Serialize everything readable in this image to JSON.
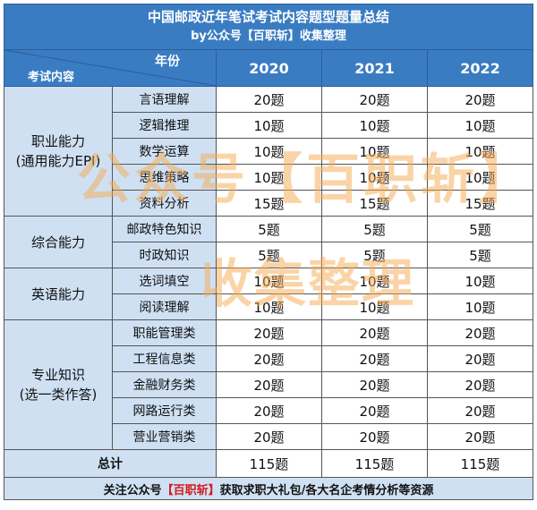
{
  "title": "中国邮政近年笔试考试内容题型题量总结",
  "subtitle": "by公众号【百职斩】收集整理",
  "header": {
    "year_label": "年份",
    "content_label": "考试内容",
    "years": [
      "2020",
      "2021",
      "2022"
    ]
  },
  "categories": [
    {
      "name_line1": "职业能力",
      "name_line2": "(通用能力EPI)",
      "rows": [
        {
          "sub": "言语理解",
          "values": [
            "20题",
            "20题",
            "20题"
          ]
        },
        {
          "sub": "逻辑推理",
          "values": [
            "10题",
            "10题",
            "10题"
          ]
        },
        {
          "sub": "数学运算",
          "values": [
            "10题",
            "10题",
            "10题"
          ]
        },
        {
          "sub": "思维策略",
          "values": [
            "10题",
            "10题",
            "10题"
          ]
        },
        {
          "sub": "资料分析",
          "values": [
            "15题",
            "15题",
            "15题"
          ]
        }
      ]
    },
    {
      "name_line1": "综合能力",
      "name_line2": "",
      "rows": [
        {
          "sub": "邮政特色知识",
          "values": [
            "5题",
            "5题",
            "5题"
          ]
        },
        {
          "sub": "时政知识",
          "values": [
            "5题",
            "5题",
            "5题"
          ]
        }
      ]
    },
    {
      "name_line1": "英语能力",
      "name_line2": "",
      "rows": [
        {
          "sub": "选词填空",
          "values": [
            "10题",
            "10题",
            "10题"
          ]
        },
        {
          "sub": "阅读理解",
          "values": [
            "10题",
            "10题",
            "10题"
          ]
        }
      ]
    },
    {
      "name_line1": "专业知识",
      "name_line2": "(选一类作答)",
      "rows": [
        {
          "sub": "职能管理类",
          "values": [
            "20题",
            "20题",
            "20题"
          ]
        },
        {
          "sub": "工程信息类",
          "values": [
            "20题",
            "20题",
            "20题"
          ]
        },
        {
          "sub": "金融财务类",
          "values": [
            "20题",
            "20题",
            "20题"
          ]
        },
        {
          "sub": "网路运行类",
          "values": [
            "20题",
            "20题",
            "20题"
          ]
        },
        {
          "sub": "营业营销类",
          "values": [
            "20题",
            "20题",
            "20题"
          ]
        }
      ]
    }
  ],
  "total": {
    "label": "总计",
    "values": [
      "115题",
      "115题",
      "115题"
    ]
  },
  "footer": {
    "prefix": "关注公众号",
    "brand": "【百职斩】",
    "suffix": "获取求职大礼包/各大名企考情分析等资源"
  },
  "watermarks": {
    "line1": "公众号【百职斩】",
    "line2": "收集整理"
  },
  "colors": {
    "header_bg": "#3a7cc2",
    "cell_light_blue": "#cfe0f3",
    "brand_red": "#d21b1b",
    "watermark": "#f5aa50"
  }
}
